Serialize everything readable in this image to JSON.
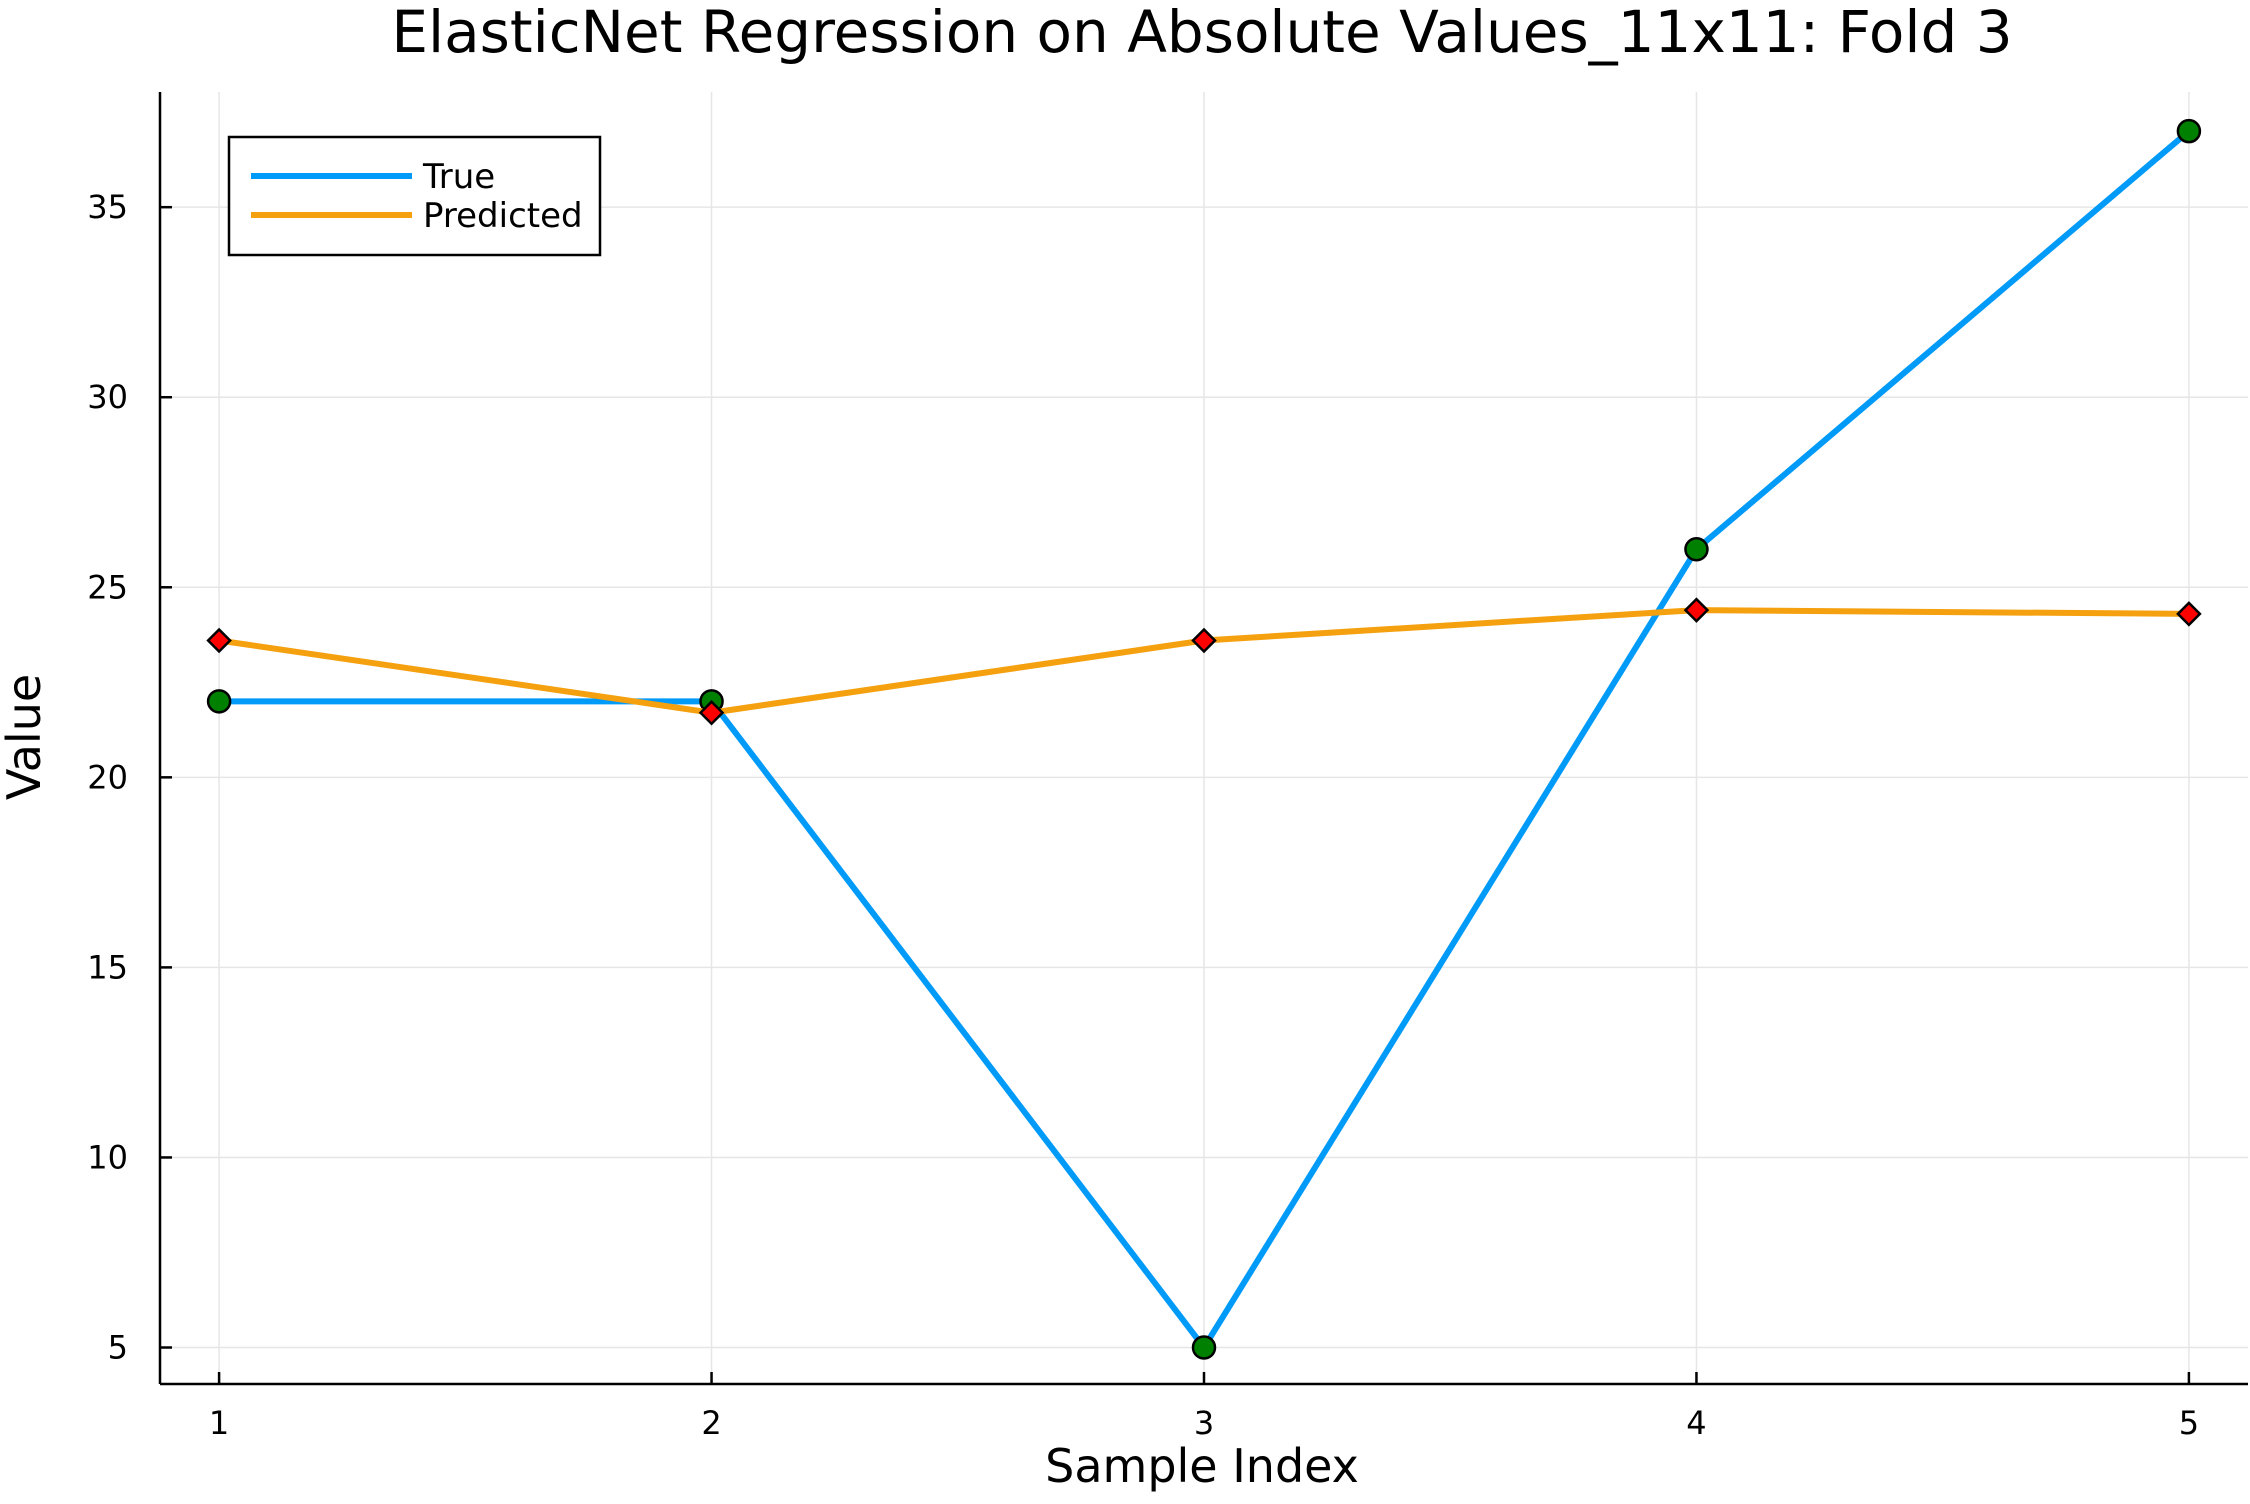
{
  "chart_data": {
    "type": "line",
    "title": "ElasticNet Regression on Absolute Values_11x11: Fold 3",
    "xlabel": "Sample Index",
    "ylabel": "Value",
    "x": [
      1,
      2,
      3,
      4,
      5
    ],
    "x_ticks": [
      1,
      2,
      3,
      4,
      5
    ],
    "y_ticks": [
      5,
      10,
      15,
      20,
      25,
      30,
      35
    ],
    "xlim": [
      0.88,
      5.12
    ],
    "ylim": [
      4.04,
      38.03
    ],
    "grid": true,
    "legend_position": "top-left",
    "series": [
      {
        "name": "True",
        "values": [
          22,
          22,
          5,
          26,
          37
        ],
        "line_color": "#009af9",
        "marker": "circle",
        "marker_color": "#008000"
      },
      {
        "name": "Predicted",
        "values": [
          23.6,
          21.7,
          23.6,
          24.4,
          24.3
        ],
        "line_color": "#f5a00f",
        "marker": "diamond",
        "marker_color": "#ff0000"
      }
    ]
  }
}
